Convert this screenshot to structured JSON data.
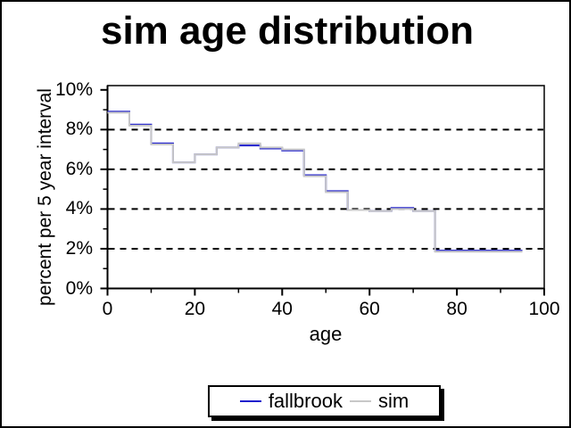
{
  "title": "sim age distribution",
  "chart_data": {
    "type": "line",
    "subtype": "step",
    "title": "sim age distribution",
    "xlabel": "age",
    "ylabel": "percent per 5 year interval",
    "xlim": [
      0,
      100
    ],
    "ylim": [
      0,
      10.2
    ],
    "x_major_ticks": [
      0,
      20,
      40,
      60,
      80,
      100
    ],
    "x_minor_ticks": [
      10,
      30,
      50,
      70,
      90
    ],
    "x_tick_labels": [
      "0",
      "20",
      "40",
      "60",
      "80",
      "100"
    ],
    "y_major_ticks": [
      0,
      2,
      4,
      6,
      8,
      10
    ],
    "y_minor_ticks": [
      1,
      3,
      5,
      7,
      9
    ],
    "y_tick_labels": [
      "0%",
      "2%",
      "4%",
      "6%",
      "8%",
      "10%"
    ],
    "gridlines_y": [
      2,
      4,
      6,
      8
    ],
    "grid_style": "dashed",
    "bin_width_years": 5,
    "bin_starts": [
      0,
      5,
      10,
      15,
      20,
      25,
      30,
      35,
      40,
      45,
      50,
      55,
      60,
      65,
      70,
      75,
      80,
      85,
      90
    ],
    "series": [
      {
        "name": "fallbrook",
        "color": "#2020CC",
        "values": [
          8.9,
          8.25,
          7.3,
          6.35,
          6.75,
          7.1,
          7.2,
          7.05,
          6.95,
          5.7,
          4.9,
          3.95,
          3.9,
          4.05,
          3.9,
          1.9,
          1.9,
          1.9,
          1.9
        ]
      },
      {
        "name": "sim",
        "color": "#C8C8C8",
        "values": [
          8.85,
          8.2,
          7.25,
          6.35,
          6.75,
          7.1,
          7.3,
          7.1,
          7.0,
          5.65,
          4.85,
          3.95,
          3.9,
          4.0,
          3.9,
          1.85,
          1.85,
          1.85,
          1.85
        ]
      }
    ],
    "legend_position": "bottom-center",
    "frame_color": "#000000",
    "background_color": "#FFFFFF"
  }
}
